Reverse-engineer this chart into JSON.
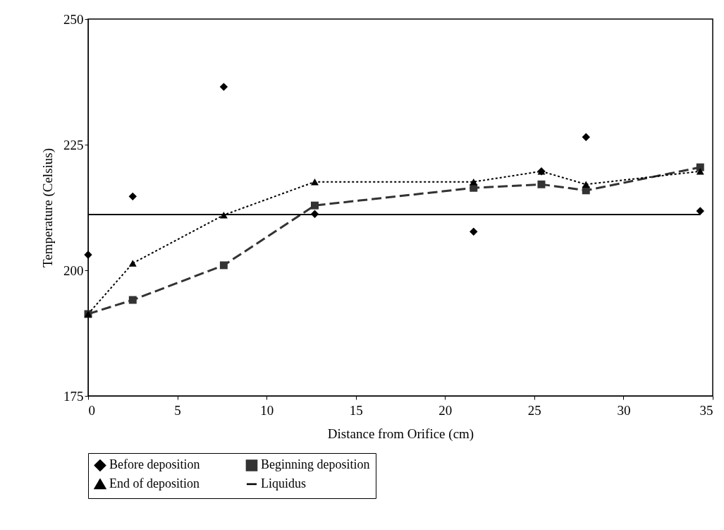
{
  "chart_data": {
    "type": "line",
    "xlabel": "Distance from Orifice (cm)",
    "ylabel": "Temperature (Celsius)",
    "xlim": [
      0,
      35
    ],
    "xticks": [
      0,
      5,
      10,
      15,
      20,
      25,
      30,
      35
    ],
    "ylim": [
      175,
      250
    ],
    "yticks": [
      175,
      200,
      225,
      250
    ],
    "grid": false,
    "legend": "bottom",
    "x": [
      0,
      2.5,
      7.6,
      12.7,
      21.6,
      25.4,
      27.9,
      34.3
    ],
    "series": [
      {
        "name": "Before deposition",
        "type": "scatter",
        "marker": "diamond",
        "color": "#000000",
        "values": [
          203.1,
          214.7,
          236.5,
          211.2,
          207.7,
          219.7,
          226.5,
          211.8
        ]
      },
      {
        "name": "Beginning deposition",
        "marker": "square",
        "line_style": "dashed",
        "color": "#333333",
        "values": [
          191.3,
          194.1,
          201.0,
          212.9,
          216.4,
          217.1,
          215.9,
          220.5
        ]
      },
      {
        "name": "End of deposition",
        "marker": "triangle",
        "line_style": "dotted",
        "color": "#000000",
        "values": [
          191.3,
          201.4,
          211.0,
          217.6,
          217.6,
          219.7,
          217.1,
          219.7
        ]
      },
      {
        "name": "Liquidus",
        "marker": "none",
        "line_style": "solid",
        "color": "#000000",
        "x": [
          0,
          34.3
        ],
        "values": [
          211.1,
          211.1
        ]
      }
    ]
  }
}
